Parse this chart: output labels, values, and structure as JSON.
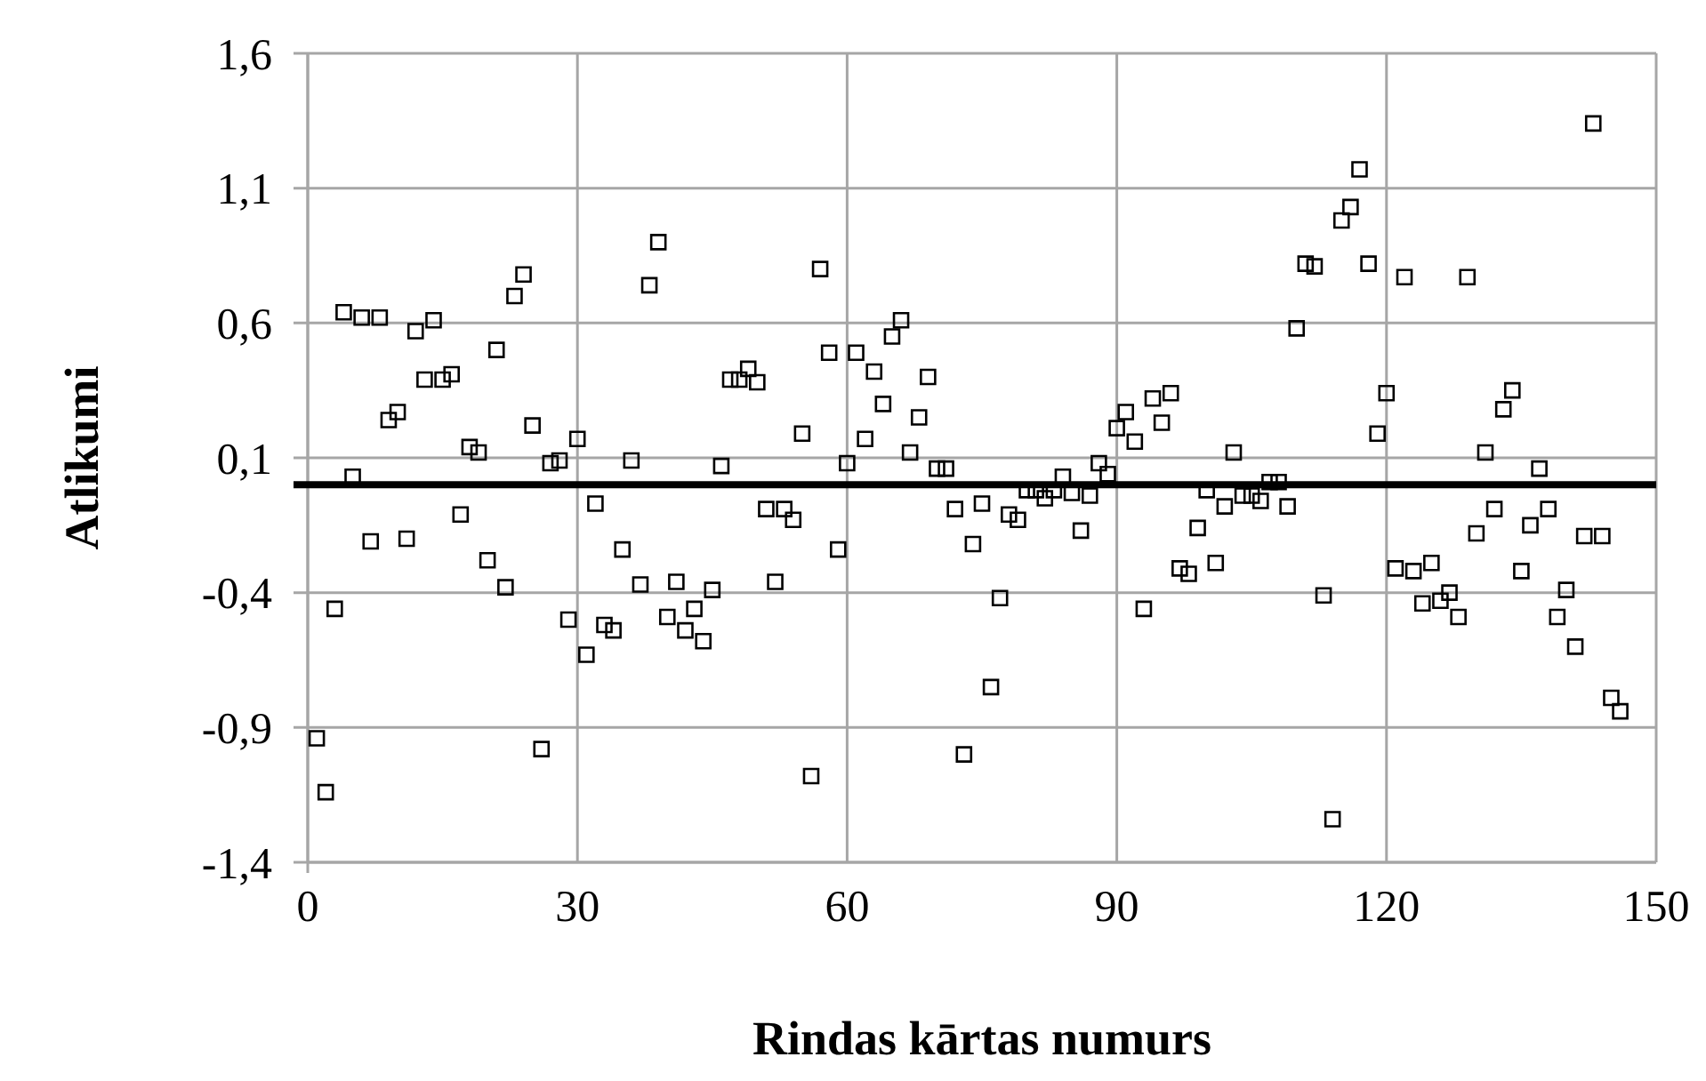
{
  "chart_data": {
    "type": "scatter",
    "xlabel": "Rindas kārtas numurs",
    "ylabel": "Atlikumi",
    "xlim": [
      0,
      150
    ],
    "xticks": [
      0,
      30,
      60,
      90,
      120,
      150
    ],
    "ylim": [
      -1.4,
      1.6
    ],
    "yticks": [
      {
        "value": -1.4,
        "label": "-1,4"
      },
      {
        "value": -0.9,
        "label": "-0,9"
      },
      {
        "value": -0.4,
        "label": "-0,4"
      },
      {
        "value": 0.1,
        "label": "0,1"
      },
      {
        "value": 0.6,
        "label": "0,6"
      },
      {
        "value": 1.1,
        "label": "1,1"
      },
      {
        "value": 1.6,
        "label": "1,6"
      }
    ],
    "grid": true,
    "marker": "square",
    "ref_lines": [
      {
        "axis": "y",
        "value": 0,
        "color": "#000000"
      }
    ],
    "series": [
      {
        "color": "#000000",
        "x": [
          1,
          2,
          3,
          4,
          5,
          6,
          7,
          8,
          9,
          10,
          11,
          12,
          13,
          14,
          15,
          16,
          17,
          18,
          19,
          20,
          21,
          22,
          23,
          24,
          25,
          26,
          27,
          28,
          29,
          30,
          31,
          32,
          33,
          34,
          35,
          36,
          37,
          38,
          39,
          40,
          41,
          42,
          43,
          44,
          45,
          46,
          47,
          48,
          49,
          50,
          51,
          52,
          53,
          54,
          55,
          56,
          57,
          58,
          59,
          60,
          61,
          62,
          63,
          64,
          65,
          66,
          67,
          68,
          69,
          70,
          71,
          72,
          73,
          74,
          75,
          76,
          77,
          78,
          79,
          80,
          81,
          82,
          83,
          84,
          85,
          86,
          87,
          88,
          89,
          90,
          91,
          92,
          93,
          94,
          95,
          96,
          97,
          98,
          99,
          100,
          101,
          102,
          103,
          104,
          105,
          106,
          107,
          108,
          109,
          110,
          111,
          112,
          113,
          114,
          115,
          116,
          117,
          118,
          119,
          120,
          121,
          122,
          123,
          124,
          125,
          126,
          127,
          128,
          129,
          130,
          131,
          132,
          133,
          134,
          135,
          136,
          137,
          138,
          139,
          140,
          141,
          142,
          143,
          144,
          145,
          146
        ],
        "values": [
          -0.94,
          -1.14,
          -0.46,
          0.64,
          0.03,
          0.62,
          -0.21,
          0.62,
          0.24,
          0.27,
          -0.2,
          0.57,
          0.39,
          0.61,
          0.39,
          0.41,
          -0.11,
          0.14,
          0.12,
          -0.28,
          0.5,
          -0.38,
          0.7,
          0.78,
          0.22,
          -0.98,
          0.08,
          0.09,
          -0.5,
          0.17,
          -0.63,
          -0.07,
          -0.52,
          -0.54,
          -0.24,
          0.09,
          -0.37,
          0.74,
          0.9,
          -0.49,
          -0.36,
          -0.54,
          -0.46,
          -0.58,
          -0.39,
          0.07,
          0.39,
          0.39,
          0.43,
          0.38,
          -0.09,
          -0.36,
          -0.09,
          -0.13,
          0.19,
          -1.08,
          0.8,
          0.49,
          -0.24,
          0.08,
          0.49,
          0.17,
          0.42,
          0.3,
          0.55,
          0.61,
          0.12,
          0.25,
          0.4,
          0.06,
          0.06,
          -0.09,
          -1.0,
          -0.22,
          -0.07,
          -0.75,
          -0.42,
          -0.11,
          -0.13,
          -0.02,
          -0.02,
          -0.05,
          -0.02,
          0.03,
          -0.03,
          -0.17,
          -0.04,
          0.08,
          0.04,
          0.21,
          0.27,
          0.16,
          -0.46,
          0.32,
          0.23,
          0.34,
          -0.31,
          -0.33,
          -0.16,
          -0.02,
          -0.29,
          -0.08,
          0.12,
          -0.04,
          -0.04,
          -0.06,
          0.01,
          0.01,
          -0.08,
          0.58,
          0.82,
          0.81,
          -0.41,
          -1.24,
          0.98,
          1.03,
          1.17,
          0.82,
          0.19,
          0.34,
          -0.31,
          0.77,
          -0.32,
          -0.44,
          -0.29,
          -0.43,
          -0.4,
          -0.49,
          0.77,
          -0.18,
          0.12,
          -0.09,
          0.28,
          0.35,
          -0.32,
          -0.15,
          0.06,
          -0.09,
          -0.49,
          -0.39,
          -0.6,
          -0.19,
          1.34,
          -0.19,
          -0.79,
          -0.84
        ]
      }
    ]
  }
}
